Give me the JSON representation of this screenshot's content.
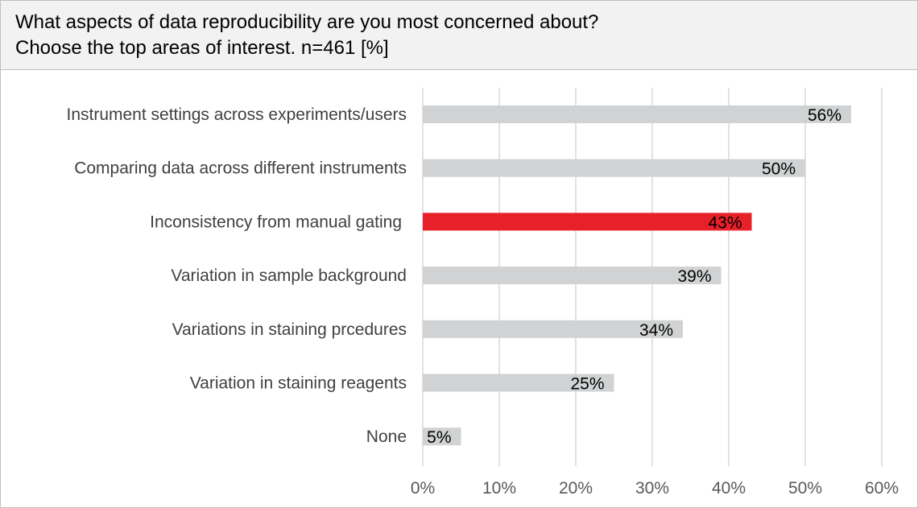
{
  "chart_data": {
    "type": "bar",
    "orientation": "horizontal",
    "title": "What aspects of data reproducibility are you most concerned about?",
    "subtitle": "Choose the top areas of interest. n=461 [%]",
    "categories": [
      "Instrument settings across experiments/users",
      "Comparing data across different instruments",
      "Inconsistency from manual gating",
      "Variation in sample background",
      "Variations in staining prcedures",
      "Variation in staining reagents",
      "None"
    ],
    "values": [
      56,
      50,
      43,
      39,
      34,
      25,
      5
    ],
    "data_labels": [
      "56%",
      "50%",
      "43%",
      "39%",
      "34%",
      "25%",
      "5%"
    ],
    "xlim": [
      0,
      60
    ],
    "x_ticks": [
      0,
      10,
      20,
      30,
      40,
      50,
      60
    ],
    "x_tick_labels": [
      "0%",
      "10%",
      "20%",
      "30%",
      "40%",
      "50%",
      "60%"
    ],
    "xlabel": "",
    "ylabel": "",
    "grid": "vertical",
    "legend": "none",
    "colors": {
      "default_bar": "#d0d2d3",
      "highlight_bar": "#e8202a",
      "highlight_index": 2
    }
  }
}
